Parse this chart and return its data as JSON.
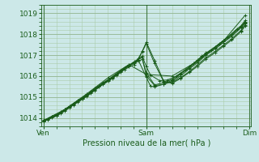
{
  "bg_color": "#cce8e8",
  "grid_major_color": "#99bb99",
  "grid_minor_color": "#aaccaa",
  "line_color": "#1a5c1a",
  "xlabel": "Pression niveau de la mer( hPa )",
  "xlabel_color": "#1a5c1a",
  "tick_color": "#1a5c1a",
  "ylim": [
    1013.6,
    1019.4
  ],
  "yticks": [
    1014,
    1015,
    1016,
    1017,
    1018,
    1019
  ],
  "lines": [
    {
      "x": [
        0.0,
        0.04,
        0.13,
        0.21,
        0.29,
        0.38,
        0.46,
        0.54,
        0.63,
        0.71,
        0.79,
        0.88,
        0.96,
        1.0,
        1.08,
        1.17,
        1.25,
        1.33,
        1.42,
        1.5,
        1.58,
        1.67,
        1.75,
        1.83,
        1.92,
        1.96
      ],
      "y": [
        1013.87,
        1013.93,
        1014.12,
        1014.37,
        1014.65,
        1014.93,
        1015.22,
        1015.52,
        1015.8,
        1016.08,
        1016.38,
        1016.65,
        1016.9,
        1016.0,
        1015.55,
        1015.6,
        1015.75,
        1016.0,
        1016.35,
        1016.65,
        1017.0,
        1017.3,
        1017.6,
        1017.9,
        1018.3,
        1018.55
      ]
    },
    {
      "x": [
        0.0,
        0.04,
        0.13,
        0.21,
        0.29,
        0.38,
        0.46,
        0.54,
        0.63,
        0.71,
        0.79,
        0.88,
        0.96,
        1.0,
        1.04,
        1.13,
        1.21,
        1.29,
        1.38,
        1.46,
        1.54,
        1.63,
        1.71,
        1.79,
        1.88,
        1.96
      ],
      "y": [
        1013.9,
        1013.95,
        1014.15,
        1014.42,
        1014.68,
        1014.97,
        1015.25,
        1015.55,
        1015.83,
        1016.12,
        1016.4,
        1016.68,
        1016.95,
        1016.45,
        1016.05,
        1015.78,
        1015.82,
        1016.0,
        1016.3,
        1016.6,
        1016.95,
        1017.25,
        1017.55,
        1017.85,
        1018.25,
        1018.5
      ]
    },
    {
      "x": [
        0.0,
        0.08,
        0.17,
        0.25,
        0.33,
        0.42,
        0.5,
        0.58,
        0.67,
        0.75,
        0.83,
        0.92,
        1.0,
        1.04,
        1.08,
        1.17,
        1.25,
        1.33,
        1.42,
        1.5,
        1.58,
        1.67,
        1.75,
        1.83,
        1.92,
        1.96
      ],
      "y": [
        1013.85,
        1014.05,
        1014.25,
        1014.52,
        1014.78,
        1015.07,
        1015.35,
        1015.65,
        1015.93,
        1016.22,
        1016.5,
        1016.78,
        1015.95,
        1015.52,
        1015.48,
        1015.62,
        1015.8,
        1016.08,
        1016.4,
        1016.72,
        1017.05,
        1017.35,
        1017.65,
        1017.95,
        1018.35,
        1018.6
      ]
    },
    {
      "x": [
        0.0,
        0.08,
        0.17,
        0.25,
        0.33,
        0.42,
        0.5,
        0.58,
        0.67,
        0.75,
        0.83,
        0.92,
        0.96,
        1.0,
        1.08,
        1.17,
        1.25,
        1.33,
        1.42,
        1.5,
        1.58,
        1.67,
        1.75,
        1.83,
        1.92,
        1.96
      ],
      "y": [
        1013.83,
        1014.02,
        1014.22,
        1014.48,
        1014.75,
        1015.03,
        1015.32,
        1015.62,
        1015.9,
        1016.18,
        1016.47,
        1016.75,
        1017.18,
        1017.62,
        1016.75,
        1015.75,
        1015.65,
        1015.88,
        1016.18,
        1016.48,
        1016.82,
        1017.12,
        1017.42,
        1017.72,
        1018.12,
        1018.38
      ]
    },
    {
      "x": [
        0.04,
        0.13,
        0.21,
        0.29,
        0.38,
        0.46,
        0.54,
        0.63,
        0.71,
        0.79,
        0.88,
        0.92,
        0.96,
        1.0,
        1.08,
        1.17,
        1.25,
        1.33,
        1.42,
        1.5,
        1.58,
        1.67,
        1.75,
        1.83,
        1.92,
        1.96
      ],
      "y": [
        1013.92,
        1014.1,
        1014.35,
        1014.62,
        1014.9,
        1015.18,
        1015.48,
        1015.75,
        1016.03,
        1016.32,
        1016.55,
        1016.83,
        1017.17,
        1017.55,
        1016.6,
        1015.72,
        1015.7,
        1015.92,
        1016.22,
        1016.55,
        1016.88,
        1017.18,
        1017.48,
        1017.78,
        1018.18,
        1018.45
      ]
    },
    {
      "x": [
        0.0,
        0.08,
        0.17,
        0.25,
        0.33,
        0.42,
        0.5,
        0.58,
        0.67,
        0.75,
        0.83,
        0.88,
        0.96,
        1.0,
        1.08,
        1.17,
        1.25,
        1.33,
        1.42,
        1.5,
        1.58,
        1.67,
        1.75,
        1.83,
        1.92,
        1.96
      ],
      "y": [
        1013.88,
        1014.08,
        1014.28,
        1014.55,
        1014.82,
        1015.1,
        1015.4,
        1015.68,
        1015.97,
        1016.25,
        1016.53,
        1016.6,
        1016.8,
        1016.15,
        1015.58,
        1015.68,
        1015.85,
        1016.12,
        1016.45,
        1016.78,
        1017.1,
        1017.4,
        1017.7,
        1018.0,
        1018.4,
        1018.65
      ]
    },
    {
      "x": [
        0.0,
        0.21,
        0.42,
        0.63,
        0.83,
        1.0,
        1.25,
        1.5,
        1.75,
        1.96
      ],
      "y": [
        1013.87,
        1014.42,
        1015.15,
        1015.93,
        1016.55,
        1016.08,
        1016.0,
        1016.72,
        1017.68,
        1018.9
      ]
    }
  ],
  "xtick_positions": [
    0.0,
    1.0,
    2.0
  ],
  "xtick_labels": [
    "Ven",
    "Sam",
    "Dim"
  ],
  "vline_positions": [
    0.0,
    1.0,
    2.0
  ],
  "figsize": [
    3.2,
    2.0
  ],
  "dpi": 100
}
